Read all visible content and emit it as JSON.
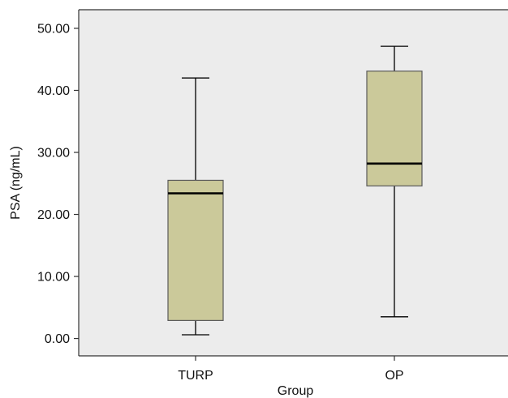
{
  "chart_data": {
    "type": "box",
    "xlabel": "Group",
    "ylabel": "PSA (ng/mL)",
    "ylim": [
      -2.8,
      53
    ],
    "yticks": [
      0,
      10,
      20,
      30,
      40,
      50
    ],
    "ytick_labels": [
      "0.00",
      "10.00",
      "20.00",
      "30.00",
      "40.00",
      "50.00"
    ],
    "categories": [
      "TURP",
      "OP"
    ],
    "boxes": [
      {
        "category": "TURP",
        "min": 0.6,
        "q1": 2.9,
        "median": 23.4,
        "q3": 25.5,
        "max": 42.0
      },
      {
        "category": "OP",
        "min": 3.5,
        "q1": 24.6,
        "median": 28.2,
        "q3": 43.1,
        "max": 47.1
      }
    ],
    "grid": false,
    "colors": {
      "plot_background": "#ececec",
      "box_fill": "#cbc99a",
      "box_stroke": "#5a5a5a",
      "median": "#000000",
      "axis": "#333333"
    }
  }
}
